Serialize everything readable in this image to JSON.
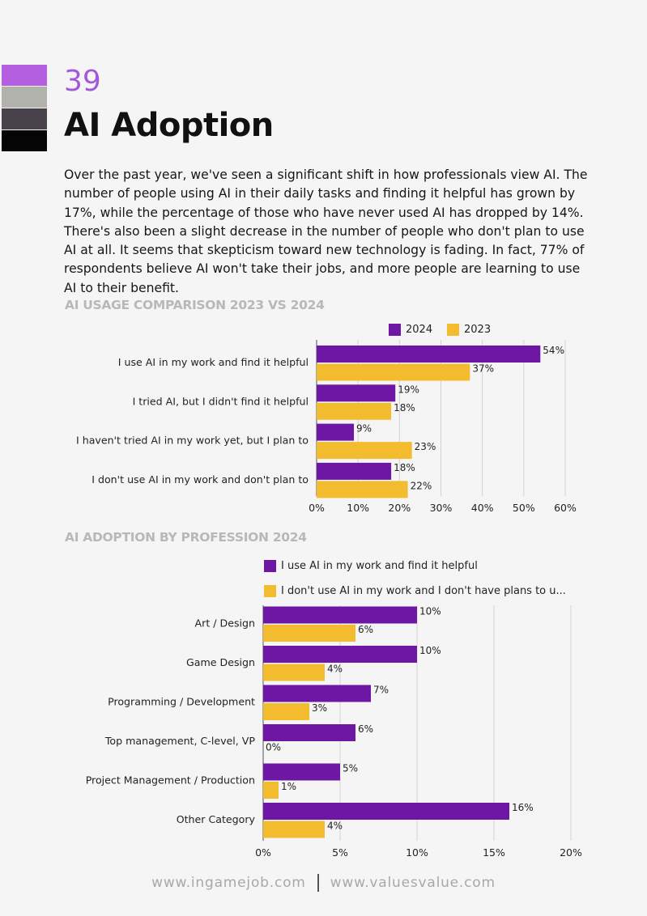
{
  "header": {
    "page_number": "39",
    "title": "AI Adoption",
    "swatch_colors": [
      "#b45fe0",
      "#b2b2ac",
      "#48424a",
      "#050505"
    ]
  },
  "intro_text": "Over the past year, we've seen a significant shift in how professionals view AI. The number of people using AI in their daily tasks and finding it helpful has grown by 17%, while the percentage of those who have never used AI has dropped by 14%. There's also been a slight decrease in the number of people who don't plan to use AI at all. It seems that skepticism toward new technology is fading. In fact, 77% of respondents believe AI won't take their jobs, and more people are learning to use AI to their benefit.",
  "footer": {
    "left": "www.ingamejob.com",
    "right": "www.valuesvalue.com"
  },
  "chart_data": [
    {
      "type": "bar",
      "orientation": "horizontal",
      "title": "AI USAGE COMPARISON 2023 VS 2024",
      "categories": [
        "I use AI in my work and find it helpful",
        "I tried AI, but I didn't find it helpful",
        "I haven't tried AI in my work yet, but I plan to",
        "I don't use AI in my work and don't plan to"
      ],
      "series": [
        {
          "name": "2024",
          "color": "#6f17a5",
          "values": [
            54,
            19,
            9,
            18
          ]
        },
        {
          "name": "2023",
          "color": "#f3bc2f",
          "values": [
            37,
            18,
            23,
            22
          ]
        }
      ],
      "xlim": [
        0,
        60
      ],
      "ticks": [
        0,
        10,
        20,
        30,
        40,
        50,
        60
      ],
      "tick_labels": [
        "0%",
        "10%",
        "20%",
        "30%",
        "40%",
        "50%",
        "60%"
      ],
      "value_suffix": "%",
      "grid": true,
      "legend": "top"
    },
    {
      "type": "bar",
      "orientation": "horizontal",
      "title": "AI ADOPTION BY PROFESSION 2024",
      "categories": [
        "Art / Design",
        "Game Design",
        "Programming / Development",
        "Top management, C-level, VP",
        "Project Management / Production",
        "Other Category"
      ],
      "series": [
        {
          "name": "I use AI in my work and find it helpful",
          "color": "#6f17a5",
          "values": [
            10,
            10,
            7,
            6,
            5,
            16
          ]
        },
        {
          "name": "I don't use AI in my work and I don't have plans to u...",
          "color": "#f3bc2f",
          "values": [
            6,
            4,
            3,
            0,
            1,
            4
          ]
        }
      ],
      "xlim": [
        0,
        20
      ],
      "ticks": [
        0,
        5,
        10,
        15,
        20
      ],
      "tick_labels": [
        "0%",
        "5%",
        "10%",
        "15%",
        "20%"
      ],
      "value_suffix": "%",
      "grid": true,
      "legend": "top"
    }
  ]
}
